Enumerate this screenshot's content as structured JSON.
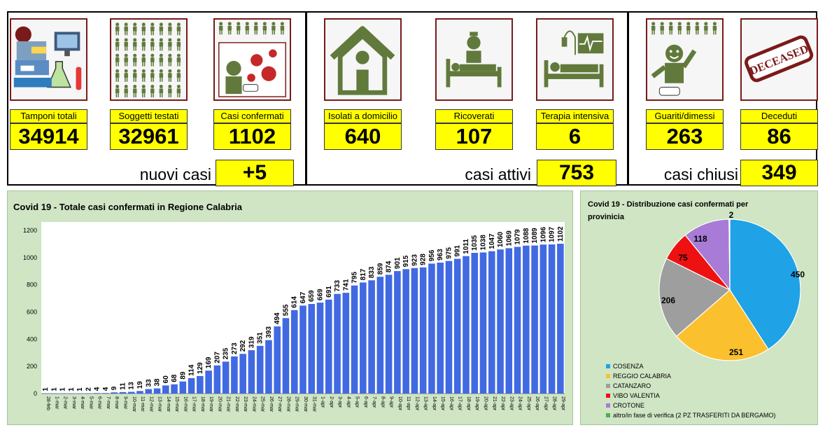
{
  "cards": [
    {
      "id": "tamponi",
      "label": "Tamponi totali",
      "value": "34914",
      "icon": "lab-equipment-icon"
    },
    {
      "id": "soggetti",
      "label": "Soggetti testati",
      "value": "32961",
      "icon": "people-grid-icon"
    },
    {
      "id": "confermati",
      "label": "Casi confermati",
      "value": "1102",
      "icon": "virus-icon"
    },
    {
      "id": "isolati",
      "label": "Isolati a domicilio",
      "value": "640",
      "icon": "house-icon"
    },
    {
      "id": "ricoverati",
      "label": "Ricoverati",
      "value": "107",
      "icon": "hospital-bed-icon"
    },
    {
      "id": "terapia",
      "label": "Terapia intensiva",
      "value": "6",
      "icon": "intensive-care-icon"
    },
    {
      "id": "guariti",
      "label": "Guariti/dimessi",
      "value": "263",
      "icon": "recovered-person-icon"
    },
    {
      "id": "deceduti",
      "label": "Deceduti",
      "value": "86",
      "icon": "deceased-stamp-icon"
    }
  ],
  "stamp_text": "DECEASED",
  "summary": {
    "nuovi_label": "nuovi casi",
    "nuovi_value": "+5",
    "attivi_label": "casi attivi",
    "attivi_value": "753",
    "chiusi_label": "casi chiusi",
    "chiusi_value": "349"
  },
  "colors": {
    "bar": "#4169e1",
    "yellow": "#ffff00",
    "chart_bg": "#cfe5c4",
    "icon": "#617a3c",
    "pie": [
      "#1fa2e6",
      "#fbc02d",
      "#9e9e9e",
      "#ee1111",
      "#a87cd6",
      "#4caf50"
    ]
  },
  "chart_data": [
    {
      "type": "bar",
      "title": "Covid 19 - Totale casi confermati in Regione Calabria",
      "ylim": [
        0,
        1200
      ],
      "yticks": [
        0,
        200,
        400,
        600,
        800,
        1000,
        1200
      ],
      "grid": false,
      "categories": [
        "28-feb",
        "1-mar",
        "2-mar",
        "3-mar",
        "4-mar",
        "5-mar",
        "6-mar",
        "7-mar",
        "8-mar",
        "9-mar",
        "10-mar",
        "11-mar",
        "12-mar",
        "13-mar",
        "14-mar",
        "15-mar",
        "16-mar",
        "17-mar",
        "18-mar",
        "19-mar",
        "20-mar",
        "21-mar",
        "22-mar",
        "23-mar",
        "24-mar",
        "25-mar",
        "26-mar",
        "27-mar",
        "28-mar",
        "29-mar",
        "30-mar",
        "31-mar",
        "1-apr",
        "2-apr",
        "3-apr",
        "4-apr",
        "5-apr",
        "6-apr",
        "7-apr",
        "8-apr",
        "9-apr",
        "10-apr",
        "11-apr",
        "12-apr",
        "13-apr",
        "14-apr",
        "15-apr",
        "16-apr",
        "17-apr",
        "18-apr",
        "19-apr",
        "20-apr",
        "21-apr",
        "22-apr",
        "23-apr",
        "24-apr",
        "25-apr",
        "26-apr",
        "27-apr",
        "28-apr",
        "29-apr"
      ],
      "values": [
        1,
        1,
        1,
        1,
        1,
        2,
        4,
        4,
        9,
        11,
        13,
        19,
        33,
        38,
        60,
        68,
        89,
        114,
        129,
        169,
        207,
        235,
        273,
        292,
        319,
        351,
        393,
        494,
        555,
        614,
        647,
        659,
        669,
        691,
        733,
        741,
        795,
        817,
        833,
        859,
        874,
        901,
        915,
        923,
        928,
        956,
        963,
        975,
        991,
        1011,
        1035,
        1038,
        1047,
        1060,
        1069,
        1079,
        1088,
        1089,
        1096,
        1097,
        1102
      ]
    },
    {
      "type": "pie",
      "title": "Covid 19 - Distribuzione casi confermati per provinicia",
      "labels": [
        "COSENZA",
        "REGGIO CALABRIA",
        "CATANZARO",
        "VIBO VALENTIA",
        "CROTONE",
        "altro/in fase di verifica (2 PZ TRASFERITI DA BERGAMO)"
      ],
      "values": [
        450,
        251,
        206,
        75,
        118,
        2
      ],
      "legend": "bottom-left"
    }
  ]
}
